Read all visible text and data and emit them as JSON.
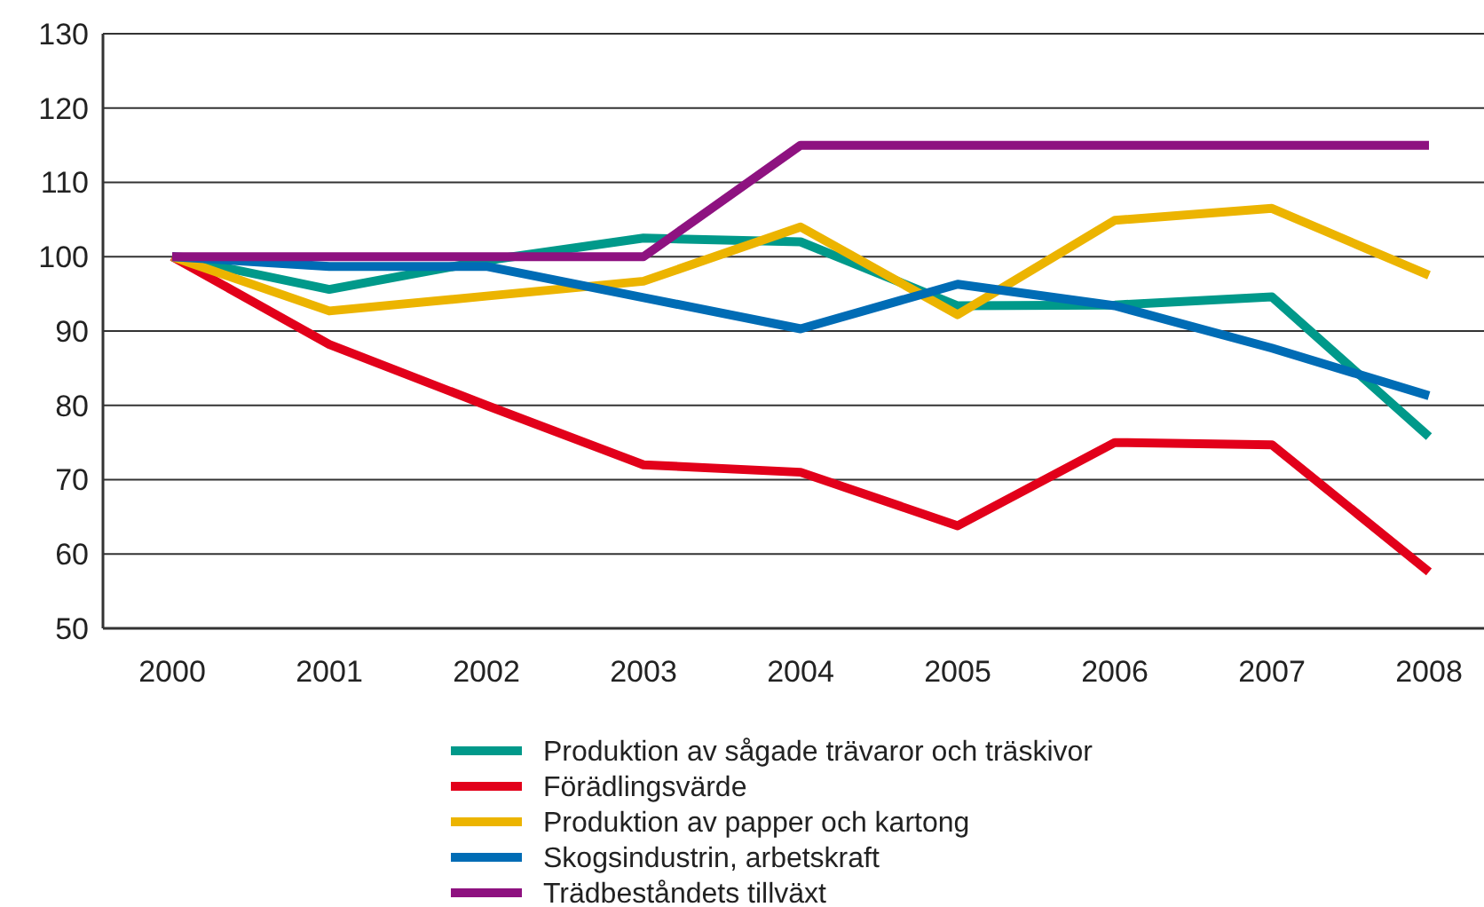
{
  "chart_data": {
    "type": "line",
    "categories": [
      "2000",
      "2001",
      "2002",
      "2003",
      "2004",
      "2005",
      "2006",
      "2007",
      "2008"
    ],
    "series": [
      {
        "name": "Produktion av sågade trävaror och träskivor",
        "color": "#00998a",
        "values": [
          100,
          95.6,
          99.5,
          102.5,
          102,
          93.4,
          93.5,
          94.6,
          75.8
        ]
      },
      {
        "name": "Förädlingsvärde",
        "color": "#e2001a",
        "values": [
          100,
          88.2,
          80,
          72,
          71,
          63.8,
          75,
          74.7,
          57.6
        ]
      },
      {
        "name": "Produktion av papper och kartong",
        "color": "#ecb400",
        "values": [
          100,
          92.7,
          94.7,
          96.7,
          104,
          92.2,
          104.9,
          106.5,
          97.5
        ]
      },
      {
        "name": "Skogsindustrin, arbetskraft",
        "color": "#006cb5",
        "values": [
          100,
          98.7,
          98.7,
          94.5,
          90.3,
          96.3,
          93.4,
          87.7,
          81.3
        ]
      },
      {
        "name": "Trädbeståndets tillväxt",
        "color": "#8e1280",
        "values": [
          100,
          100,
          100,
          100,
          115,
          115,
          115,
          115,
          115
        ]
      }
    ],
    "ylim": [
      50,
      130
    ],
    "yticks": [
      50,
      60,
      70,
      80,
      90,
      100,
      110,
      120,
      130
    ],
    "grid": "y",
    "legend": "bottom",
    "marker": "none",
    "line_style": "solid"
  }
}
